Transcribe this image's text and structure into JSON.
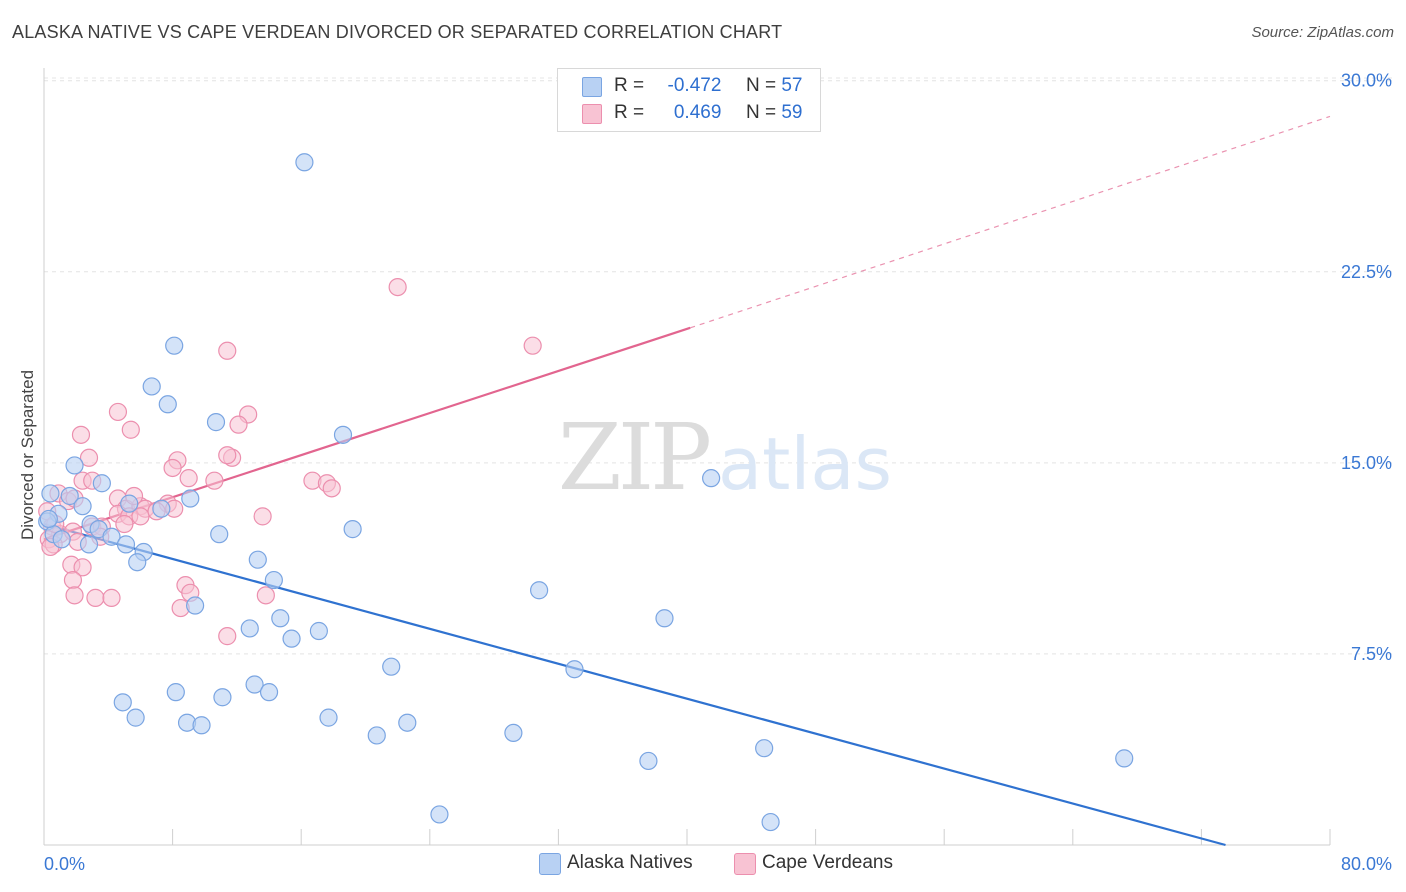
{
  "header": {
    "title": "ALASKA NATIVE VS CAPE VERDEAN DIVORCED OR SEPARATED CORRELATION CHART",
    "source": "Source: ZipAtlas.com"
  },
  "legend": {
    "series1": {
      "r_label": "R =",
      "r_value": "-0.472",
      "n_label": "N =",
      "n_value": "57"
    },
    "series2": {
      "r_label": "R =",
      "r_value": "0.469",
      "n_label": "N =",
      "n_value": "59"
    }
  },
  "bottom_legend": {
    "series1": "Alaska Natives",
    "series2": "Cape Verdeans"
  },
  "watermark": {
    "zip": "ZIP",
    "atlas": "atlas"
  },
  "colors": {
    "blue_fill": "#b8d1f3",
    "blue_stroke": "#7aa5e2",
    "blue_line": "#2f72d0",
    "pink_fill": "#f8c3d3",
    "pink_stroke": "#ec8fae",
    "pink_line": "#e2658f",
    "tick_text": "#3a78d4"
  },
  "chart_data": {
    "type": "scatter",
    "title": "ALASKA NATIVE VS CAPE VERDEAN DIVORCED OR SEPARATED CORRELATION CHART",
    "xlabel": "",
    "ylabel": "Divorced or Separated",
    "xlim": [
      0,
      80
    ],
    "ylim": [
      0,
      30.5
    ],
    "x_tick_labels": [
      "0.0%",
      "80.0%"
    ],
    "y_ticks": [
      7.5,
      15.0,
      22.5,
      30.0
    ],
    "y_tick_labels": [
      "7.5%",
      "15.0%",
      "22.5%",
      "30.0%"
    ],
    "grid": true,
    "legend_position": "top-center",
    "series": [
      {
        "name": "Alaska Natives",
        "R": -0.472,
        "N": 57,
        "trend": {
          "x0": 0,
          "y0": 12.6,
          "x1": 73.5,
          "y1": 0.0
        },
        "points": [
          [
            16.2,
            26.8
          ],
          [
            8.1,
            19.6
          ],
          [
            6.7,
            18.0
          ],
          [
            7.7,
            17.3
          ],
          [
            10.7,
            16.6
          ],
          [
            18.6,
            16.1
          ],
          [
            1.9,
            14.9
          ],
          [
            3.6,
            14.2
          ],
          [
            0.4,
            13.8
          ],
          [
            1.6,
            13.7
          ],
          [
            2.4,
            13.3
          ],
          [
            5.3,
            13.4
          ],
          [
            7.3,
            13.2
          ],
          [
            9.1,
            13.6
          ],
          [
            0.9,
            13.0
          ],
          [
            0.2,
            12.7
          ],
          [
            2.9,
            12.6
          ],
          [
            3.4,
            12.4
          ],
          [
            4.2,
            12.1
          ],
          [
            0.6,
            12.2
          ],
          [
            1.1,
            12.0
          ],
          [
            2.8,
            11.8
          ],
          [
            5.1,
            11.8
          ],
          [
            6.2,
            11.5
          ],
          [
            10.9,
            12.2
          ],
          [
            19.2,
            12.4
          ],
          [
            5.8,
            11.1
          ],
          [
            13.3,
            11.2
          ],
          [
            14.3,
            10.4
          ],
          [
            30.8,
            10.0
          ],
          [
            9.4,
            9.4
          ],
          [
            14.7,
            8.9
          ],
          [
            38.6,
            8.9
          ],
          [
            12.8,
            8.5
          ],
          [
            17.1,
            8.4
          ],
          [
            15.4,
            8.1
          ],
          [
            21.6,
            7.0
          ],
          [
            33.0,
            6.9
          ],
          [
            13.1,
            6.3
          ],
          [
            8.2,
            6.0
          ],
          [
            11.1,
            5.8
          ],
          [
            14.0,
            6.0
          ],
          [
            4.9,
            5.6
          ],
          [
            5.7,
            5.0
          ],
          [
            8.9,
            4.8
          ],
          [
            9.8,
            4.7
          ],
          [
            17.7,
            5.0
          ],
          [
            22.6,
            4.8
          ],
          [
            20.7,
            4.3
          ],
          [
            29.2,
            4.4
          ],
          [
            44.8,
            3.8
          ],
          [
            37.6,
            3.3
          ],
          [
            67.2,
            3.4
          ],
          [
            24.6,
            1.2
          ],
          [
            45.2,
            0.9
          ],
          [
            41.5,
            14.4
          ],
          [
            0.3,
            12.8
          ]
        ]
      },
      {
        "name": "Cape Verdeans",
        "R": 0.469,
        "N": 59,
        "trend": {
          "x0": 0,
          "y0": 12.0,
          "x1": 40.2,
          "y1": 20.3,
          "dash_x1": 80.0,
          "dash_y1": 28.6
        },
        "points": [
          [
            22.0,
            21.9
          ],
          [
            30.4,
            19.6
          ],
          [
            11.4,
            19.4
          ],
          [
            4.6,
            17.0
          ],
          [
            12.7,
            16.9
          ],
          [
            5.4,
            16.3
          ],
          [
            12.1,
            16.5
          ],
          [
            2.3,
            16.1
          ],
          [
            2.8,
            15.2
          ],
          [
            8.3,
            15.1
          ],
          [
            11.7,
            15.2
          ],
          [
            8.0,
            14.8
          ],
          [
            11.4,
            15.3
          ],
          [
            9.0,
            14.4
          ],
          [
            10.6,
            14.3
          ],
          [
            16.7,
            14.3
          ],
          [
            17.6,
            14.2
          ],
          [
            17.9,
            14.0
          ],
          [
            2.4,
            14.3
          ],
          [
            3.0,
            14.3
          ],
          [
            0.9,
            13.8
          ],
          [
            1.5,
            13.5
          ],
          [
            1.9,
            13.6
          ],
          [
            4.6,
            13.6
          ],
          [
            5.1,
            13.2
          ],
          [
            6.0,
            13.3
          ],
          [
            6.3,
            13.2
          ],
          [
            7.7,
            13.4
          ],
          [
            8.1,
            13.2
          ],
          [
            4.6,
            13.0
          ],
          [
            5.3,
            12.9
          ],
          [
            6.0,
            12.9
          ],
          [
            13.6,
            12.9
          ],
          [
            0.5,
            12.5
          ],
          [
            1.0,
            12.2
          ],
          [
            1.8,
            12.3
          ],
          [
            3.0,
            12.5
          ],
          [
            3.6,
            12.5
          ],
          [
            5.0,
            12.6
          ],
          [
            0.3,
            12.0
          ],
          [
            0.6,
            11.8
          ],
          [
            2.1,
            11.9
          ],
          [
            3.5,
            12.1
          ],
          [
            1.7,
            11.0
          ],
          [
            2.4,
            10.9
          ],
          [
            1.8,
            10.4
          ],
          [
            8.8,
            10.2
          ],
          [
            9.1,
            9.9
          ],
          [
            13.8,
            9.8
          ],
          [
            1.9,
            9.8
          ],
          [
            3.2,
            9.7
          ],
          [
            4.2,
            9.7
          ],
          [
            8.5,
            9.3
          ],
          [
            11.4,
            8.2
          ],
          [
            0.2,
            13.1
          ],
          [
            0.7,
            12.6
          ],
          [
            5.6,
            13.7
          ],
          [
            7.0,
            13.1
          ],
          [
            0.4,
            11.7
          ]
        ]
      }
    ]
  }
}
